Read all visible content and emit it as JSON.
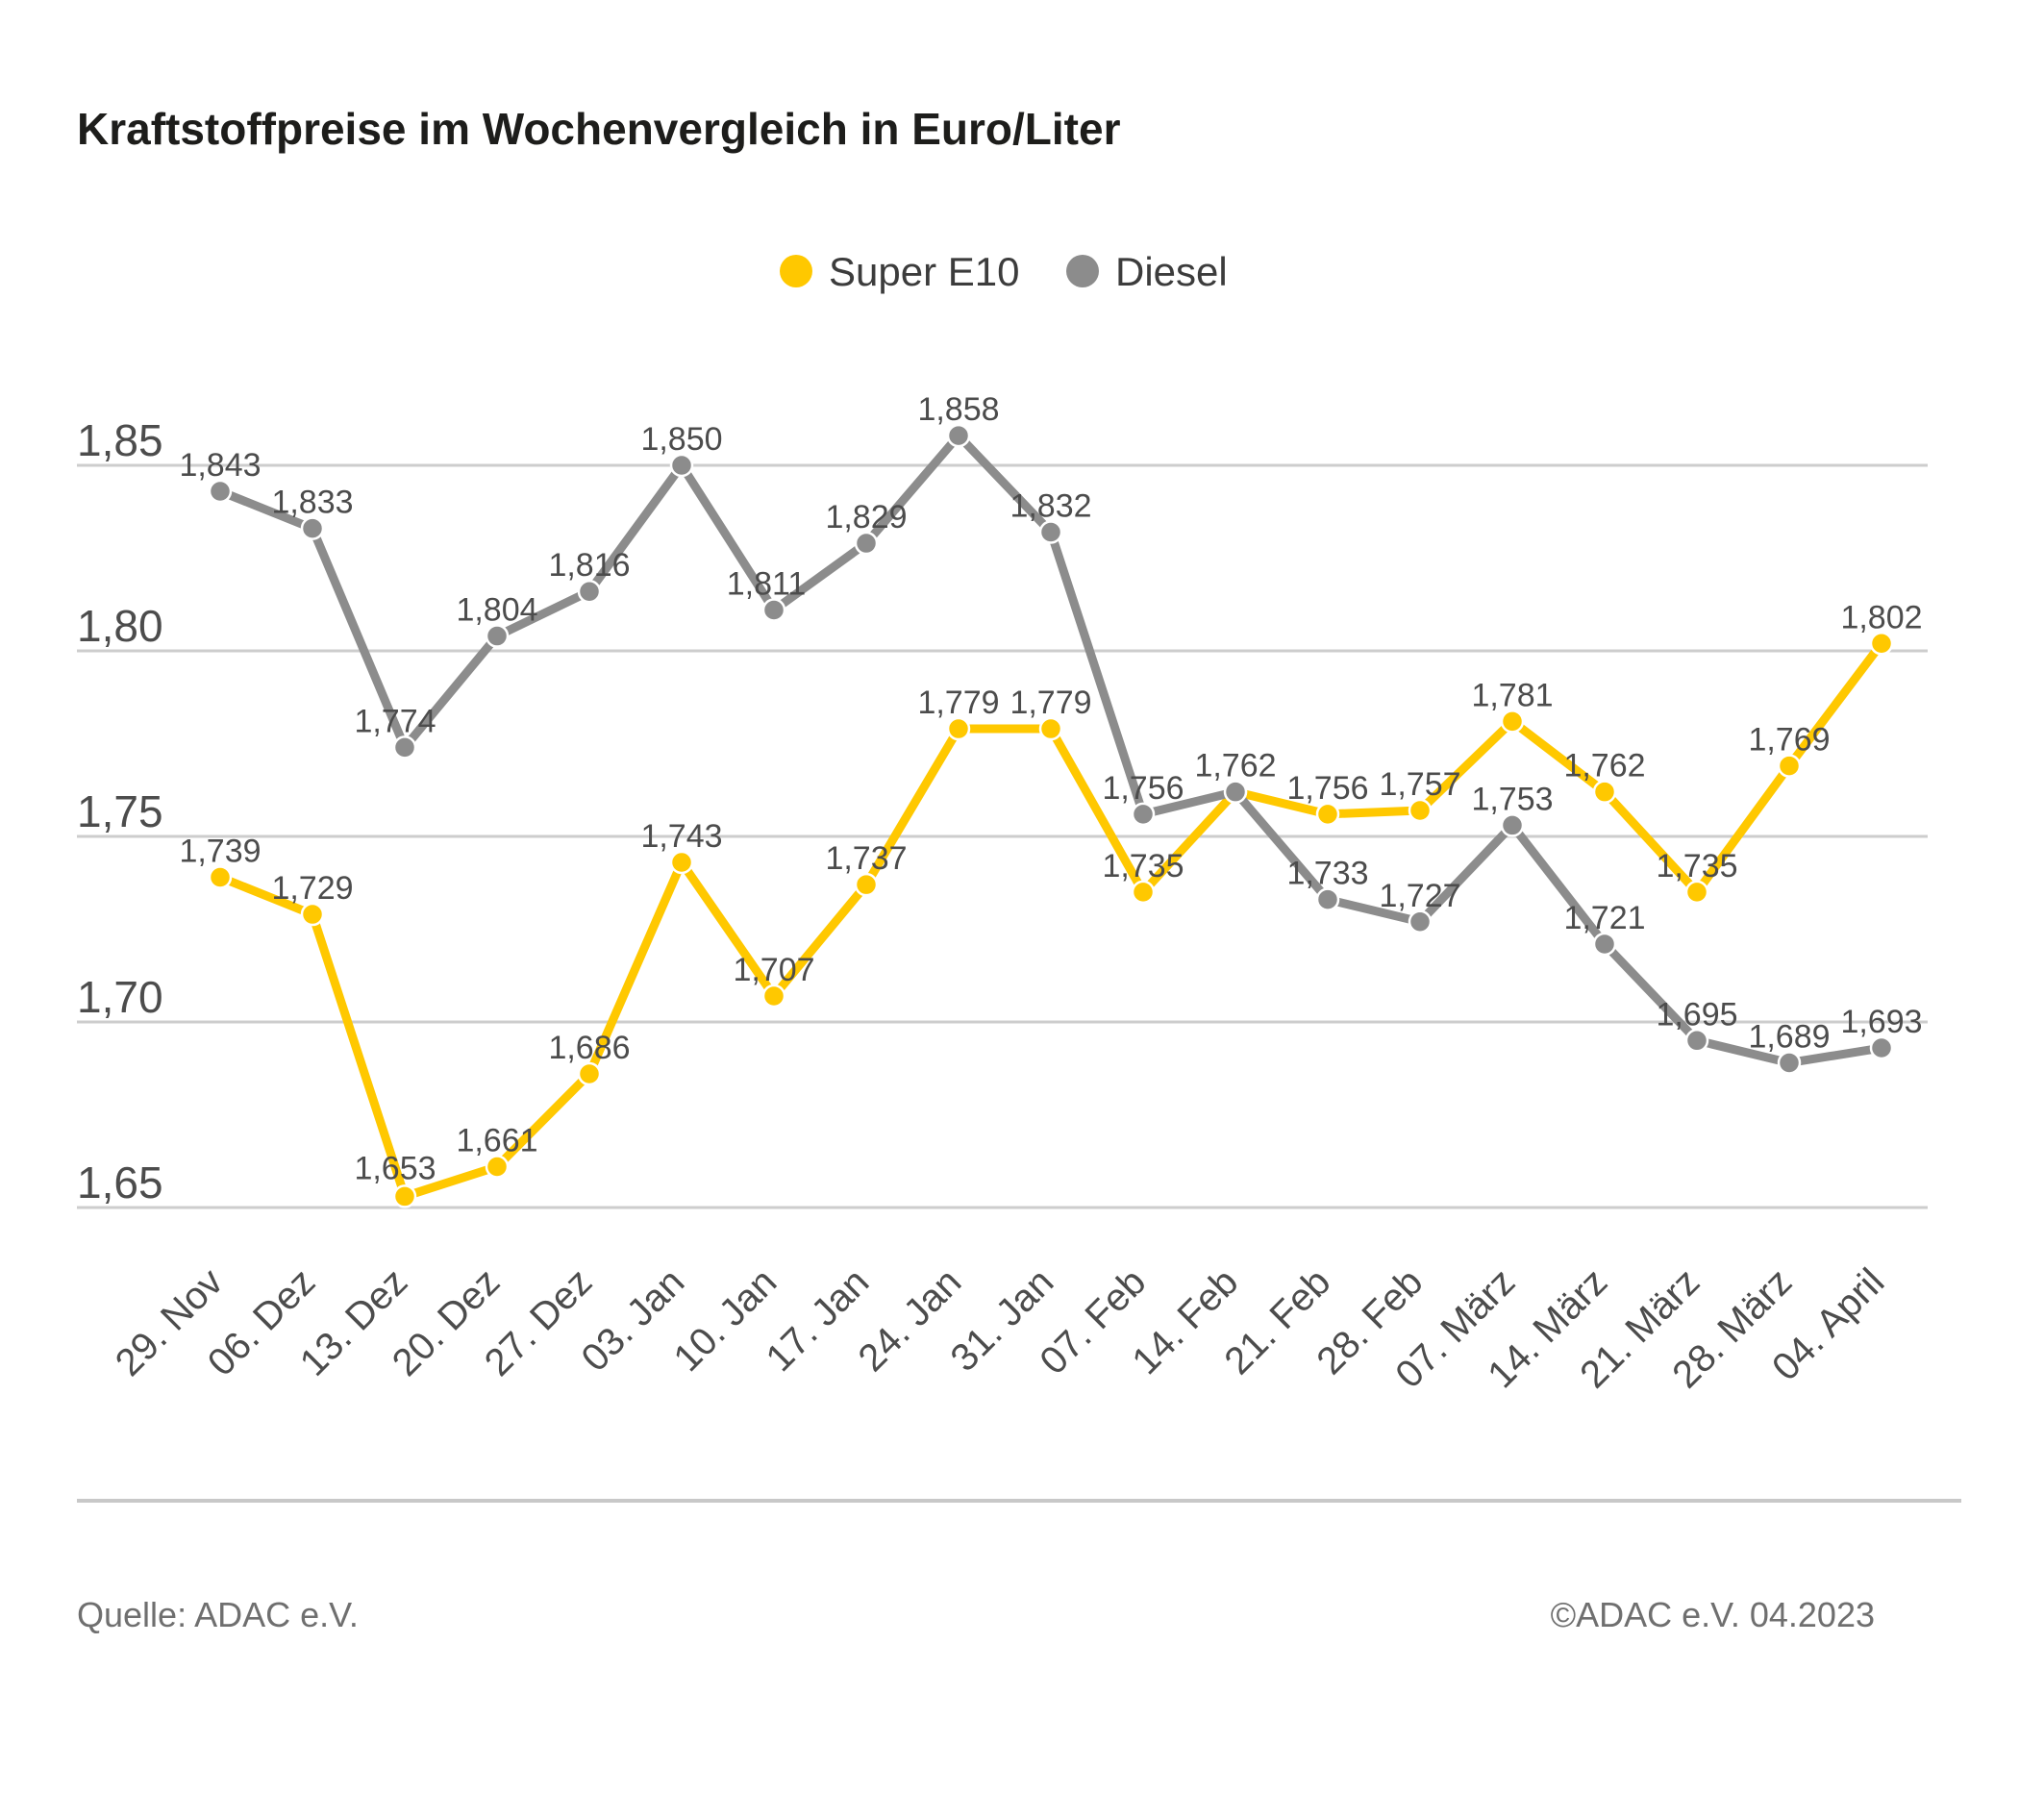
{
  "title": "Kraftstoffpreise im Wochenvergleich in Euro/Liter",
  "legend": {
    "items": [
      "Super E10",
      "Diesel"
    ]
  },
  "footer": {
    "source": "Quelle: ADAC e.V.",
    "copyright": "©ADAC e.V. 04.2023"
  },
  "chart_data": {
    "type": "line",
    "title": "Kraftstoffpreise im Wochenvergleich in Euro/Liter",
    "unit": "Euro/Liter",
    "categories": [
      "29. Nov",
      "06. Dez",
      "13. Dez",
      "20. Dez",
      "27. Dez",
      "03. Jan",
      "10. Jan",
      "17. Jan",
      "24. Jan",
      "31. Jan",
      "07. Feb",
      "14. Feb",
      "21. Feb",
      "28. Feb",
      "07. März",
      "14. März",
      "21. März",
      "28. März",
      "04. April"
    ],
    "series": [
      {
        "name": "Super E10",
        "color": "#FFC800",
        "values": [
          1.739,
          1.729,
          1.653,
          1.661,
          1.686,
          1.743,
          1.707,
          1.737,
          1.779,
          1.779,
          1.735,
          1.762,
          1.756,
          1.757,
          1.781,
          1.762,
          1.735,
          1.769,
          1.802
        ],
        "skip_label_indices": [
          11
        ]
      },
      {
        "name": "Diesel",
        "color": "#8C8C8C",
        "values": [
          1.843,
          1.833,
          1.774,
          1.804,
          1.816,
          1.85,
          1.811,
          1.829,
          1.858,
          1.832,
          1.756,
          1.762,
          1.733,
          1.727,
          1.753,
          1.721,
          1.695,
          1.689,
          1.693
        ],
        "skip_label_indices": []
      }
    ],
    "yticks": [
      1.85,
      1.8,
      1.75,
      1.7,
      1.65
    ],
    "ylim": [
      1.63,
      1.88
    ],
    "grid": true,
    "legend_position": "top-center",
    "decimal_separator": ",",
    "xlabel": "",
    "ylabel": ""
  }
}
